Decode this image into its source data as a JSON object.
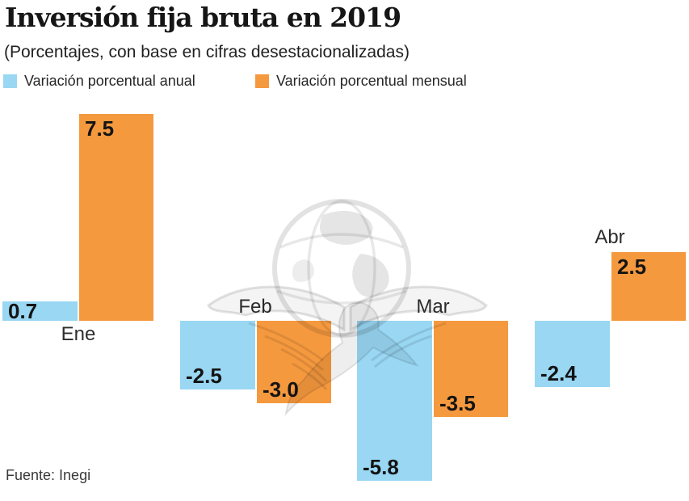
{
  "chart_data": {
    "type": "bar",
    "title": "Inversión fija bruta en 2019",
    "subtitle": "(Porcentajes, con base en cifras desestacionalizadas)",
    "source": "Fuente: Inegi",
    "categories": [
      "Ene",
      "Feb",
      "Mar",
      "Abr"
    ],
    "series": [
      {
        "key": "anual",
        "name": "Variación porcentual anual",
        "color": "#99D7F3",
        "values": [
          0.7,
          -2.5,
          -5.8,
          -2.4
        ],
        "labels": [
          "0.7",
          "-2.5",
          "-5.8",
          "-2.4"
        ]
      },
      {
        "key": "mensual",
        "name": "Variación porcentual mensual",
        "color": "#F5993F",
        "values": [
          7.5,
          -3.0,
          -3.5,
          2.5
        ],
        "labels": [
          "7.5",
          "-3.0",
          "-3.5",
          "2.5"
        ]
      }
    ],
    "ylim": [
      -6.5,
      8
    ],
    "grid": false,
    "axis_lines": false,
    "legend_position": "top",
    "value_labels_shown": true,
    "watermark": "eagle-globe-logo"
  }
}
